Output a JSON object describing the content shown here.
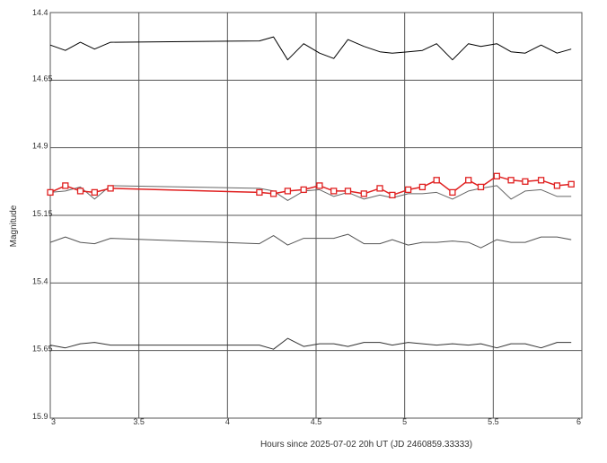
{
  "chart_data": {
    "type": "line",
    "title": "",
    "xlabel": "Hours since 2025-07-02 20h UT (JD 2460859.33333)",
    "ylabel": "Magnitude",
    "xlim": [
      3,
      6
    ],
    "ylim": [
      14.4,
      15.9
    ],
    "y_inverted": true,
    "grid": true,
    "legend": "none",
    "x_ticks": [
      {
        "value": 3,
        "label": "3"
      },
      {
        "value": 3.5,
        "label": "3.5"
      },
      {
        "value": 4,
        "label": "4"
      },
      {
        "value": 4.5,
        "label": "4.5"
      },
      {
        "value": 5,
        "label": "5"
      },
      {
        "value": 5.5,
        "label": "5.5"
      },
      {
        "value": 6,
        "label": "6"
      }
    ],
    "y_ticks": [
      {
        "value": 14.4,
        "label": "14.4"
      },
      {
        "value": 14.65,
        "label": "14.65"
      },
      {
        "value": 14.9,
        "label": "14.9"
      },
      {
        "value": 15.15,
        "label": "15.15"
      },
      {
        "value": 15.4,
        "label": "15.4"
      },
      {
        "value": 15.65,
        "label": "15.65"
      },
      {
        "value": 15.9,
        "label": "15.9"
      }
    ],
    "series": [
      {
        "color": "#000000",
        "marker": "none",
        "x": [
          3.0,
          3.085,
          3.17,
          3.25,
          3.34,
          4.18,
          4.26,
          4.34,
          4.43,
          4.52,
          4.6,
          4.68,
          4.77,
          4.86,
          4.93,
          5.02,
          5.1,
          5.18,
          5.27,
          5.36,
          5.43,
          5.52,
          5.6,
          5.68,
          5.77,
          5.86,
          5.94
        ],
        "y": [
          14.52,
          14.54,
          14.51,
          14.535,
          14.51,
          14.505,
          14.49,
          14.575,
          14.515,
          14.55,
          14.57,
          14.5,
          14.525,
          14.545,
          14.55,
          14.545,
          14.54,
          14.515,
          14.575,
          14.515,
          14.525,
          14.515,
          14.545,
          14.55,
          14.52,
          14.55,
          14.535
        ]
      },
      {
        "color": "#666666",
        "marker": "none",
        "x": [
          3.0,
          3.085,
          3.17,
          3.25,
          3.34,
          4.18,
          4.26,
          4.34,
          4.43,
          4.52,
          4.6,
          4.68,
          4.77,
          4.86,
          4.93,
          5.02,
          5.1,
          5.18,
          5.27,
          5.36,
          5.43,
          5.52,
          5.6,
          5.68,
          5.77,
          5.86,
          5.94
        ],
        "y": [
          15.065,
          15.06,
          15.045,
          15.09,
          15.04,
          15.05,
          15.06,
          15.095,
          15.06,
          15.055,
          15.08,
          15.065,
          15.09,
          15.075,
          15.085,
          15.07,
          15.07,
          15.065,
          15.09,
          15.06,
          15.05,
          15.04,
          15.09,
          15.06,
          15.055,
          15.08,
          15.08
        ]
      },
      {
        "color": "#e02020",
        "marker": "square",
        "x": [
          3.0,
          3.085,
          3.17,
          3.25,
          3.34,
          4.18,
          4.26,
          4.34,
          4.43,
          4.52,
          4.6,
          4.68,
          4.77,
          4.86,
          4.93,
          5.02,
          5.1,
          5.18,
          5.27,
          5.36,
          5.43,
          5.52,
          5.6,
          5.68,
          5.77,
          5.86,
          5.94
        ],
        "y": [
          15.065,
          15.04,
          15.06,
          15.065,
          15.05,
          15.065,
          15.07,
          15.06,
          15.055,
          15.04,
          15.06,
          15.06,
          15.07,
          15.05,
          15.075,
          15.055,
          15.045,
          15.02,
          15.065,
          15.02,
          15.045,
          15.005,
          15.02,
          15.025,
          15.02,
          15.04,
          15.035
        ]
      },
      {
        "color": "#555555",
        "marker": "none",
        "x": [
          3.0,
          3.085,
          3.17,
          3.25,
          3.34,
          4.18,
          4.26,
          4.34,
          4.43,
          4.52,
          4.6,
          4.68,
          4.77,
          4.86,
          4.93,
          5.02,
          5.1,
          5.18,
          5.27,
          5.36,
          5.43,
          5.52,
          5.6,
          5.68,
          5.77,
          5.86,
          5.94
        ],
        "y": [
          15.25,
          15.23,
          15.25,
          15.255,
          15.235,
          15.255,
          15.225,
          15.26,
          15.235,
          15.235,
          15.235,
          15.22,
          15.255,
          15.255,
          15.24,
          15.26,
          15.25,
          15.25,
          15.245,
          15.25,
          15.27,
          15.24,
          15.25,
          15.25,
          15.23,
          15.23,
          15.24
        ]
      },
      {
        "color": "#333333",
        "marker": "none",
        "x": [
          3.0,
          3.085,
          3.17,
          3.25,
          3.34,
          4.18,
          4.26,
          4.34,
          4.43,
          4.52,
          4.6,
          4.68,
          4.77,
          4.86,
          4.93,
          5.02,
          5.1,
          5.18,
          5.27,
          5.36,
          5.43,
          5.52,
          5.6,
          5.68,
          5.77,
          5.86,
          5.94
        ],
        "y": [
          15.63,
          15.64,
          15.625,
          15.62,
          15.63,
          15.63,
          15.645,
          15.605,
          15.635,
          15.625,
          15.625,
          15.635,
          15.62,
          15.62,
          15.63,
          15.62,
          15.625,
          15.63,
          15.625,
          15.63,
          15.625,
          15.64,
          15.625,
          15.625,
          15.64,
          15.62,
          15.62
        ]
      }
    ]
  }
}
